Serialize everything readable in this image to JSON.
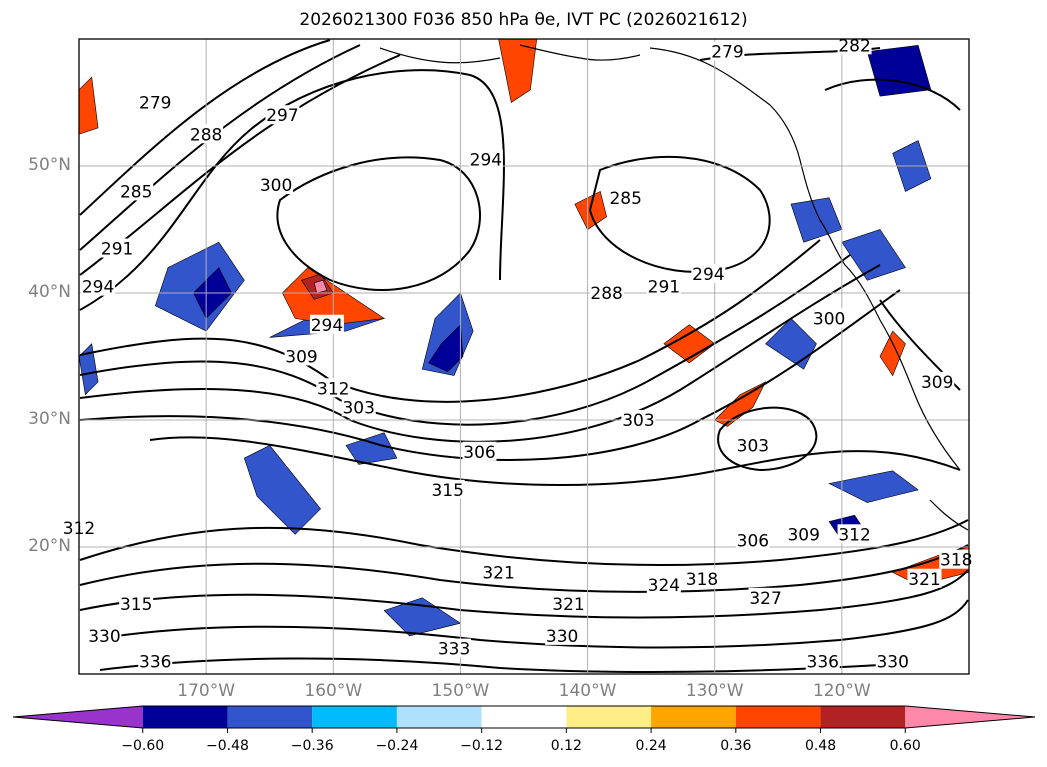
{
  "figure": {
    "title": "2026021300 F036 850 hPa θe, IVT PC (2026021612)"
  },
  "map": {
    "extent": {
      "lon_min": -180,
      "lon_max": -110,
      "lat_min": 10,
      "lat_max": 60
    },
    "lat_ticks": [
      {
        "value": 20,
        "label": "20°N"
      },
      {
        "value": 30,
        "label": "30°N"
      },
      {
        "value": 40,
        "label": "40°N"
      },
      {
        "value": 50,
        "label": "50°N"
      }
    ],
    "lon_ticks": [
      {
        "value": -170,
        "label": "170°W"
      },
      {
        "value": -160,
        "label": "160°W"
      },
      {
        "value": -150,
        "label": "150°W"
      },
      {
        "value": -140,
        "label": "140°W"
      },
      {
        "value": -130,
        "label": "130°W"
      },
      {
        "value": -120,
        "label": "120°W"
      }
    ],
    "grid": true,
    "coastline_color": "#000000",
    "contour_color": "#000000",
    "contour_labels": [
      {
        "text": "279",
        "lon": -174,
        "lat": 55
      },
      {
        "text": "288",
        "lon": -170,
        "lat": 52.5
      },
      {
        "text": "297",
        "lon": -164,
        "lat": 54
      },
      {
        "text": "285",
        "lon": -175.5,
        "lat": 48
      },
      {
        "text": "300",
        "lon": -164.5,
        "lat": 48.5
      },
      {
        "text": "291",
        "lon": -177,
        "lat": 43.5
      },
      {
        "text": "294",
        "lon": -178.5,
        "lat": 40.5
      },
      {
        "text": "294",
        "lon": -160.5,
        "lat": 37.5
      },
      {
        "text": "309",
        "lon": -162.5,
        "lat": 35
      },
      {
        "text": "312",
        "lon": -160,
        "lat": 32.5
      },
      {
        "text": "303",
        "lon": -158,
        "lat": 31
      },
      {
        "text": "306",
        "lon": -148.5,
        "lat": 27.5
      },
      {
        "text": "315",
        "lon": -151,
        "lat": 24.5
      },
      {
        "text": "312",
        "lon": -180,
        "lat": 21.5
      },
      {
        "text": "315",
        "lon": -175.5,
        "lat": 15.5
      },
      {
        "text": "330",
        "lon": -178,
        "lat": 13
      },
      {
        "text": "336",
        "lon": -174,
        "lat": 11
      },
      {
        "text": "321",
        "lon": -147,
        "lat": 18
      },
      {
        "text": "321",
        "lon": -141.5,
        "lat": 15.5
      },
      {
        "text": "324",
        "lon": -134,
        "lat": 17
      },
      {
        "text": "318",
        "lon": -131,
        "lat": 17.5
      },
      {
        "text": "327",
        "lon": -126,
        "lat": 16
      },
      {
        "text": "330",
        "lon": -142,
        "lat": 13
      },
      {
        "text": "333",
        "lon": -150.5,
        "lat": 12
      },
      {
        "text": "306",
        "lon": -127,
        "lat": 20.5
      },
      {
        "text": "309",
        "lon": -123,
        "lat": 21
      },
      {
        "text": "312",
        "lon": -119,
        "lat": 21
      },
      {
        "text": "321",
        "lon": -113.5,
        "lat": 17.5
      },
      {
        "text": "318",
        "lon": -111,
        "lat": 19
      },
      {
        "text": "336",
        "lon": -121.5,
        "lat": 11
      },
      {
        "text": "330",
        "lon": -116,
        "lat": 11
      },
      {
        "text": "303",
        "lon": -136,
        "lat": 30
      },
      {
        "text": "303",
        "lon": -127,
        "lat": 28
      },
      {
        "text": "288",
        "lon": -138.5,
        "lat": 40
      },
      {
        "text": "291",
        "lon": -134,
        "lat": 40.5
      },
      {
        "text": "294",
        "lon": -130.5,
        "lat": 41.5
      },
      {
        "text": "300",
        "lon": -121,
        "lat": 38
      },
      {
        "text": "309",
        "lon": -112.5,
        "lat": 33
      },
      {
        "text": "294",
        "lon": -148,
        "lat": 50.5
      },
      {
        "text": "285",
        "lon": -137,
        "lat": 47.5
      },
      {
        "text": "279",
        "lon": -129,
        "lat": 59
      },
      {
        "text": "282",
        "lon": -119,
        "lat": 59.5
      }
    ]
  },
  "colorbar": {
    "extend": "both",
    "boundaries": [
      -0.72,
      -0.6,
      -0.48,
      -0.36,
      -0.24,
      -0.12,
      0.12,
      0.24,
      0.36,
      0.48,
      0.6,
      0.72
    ],
    "colors": [
      "#9933cc",
      "#000099",
      "#3355cc",
      "#00bbff",
      "#b0e0ff",
      "#ffffff",
      "#ffee88",
      "#ffa500",
      "#ff4500",
      "#b22222",
      "#ff88aa"
    ],
    "ticks": [
      {
        "value": -0.6,
        "label": "−0.60"
      },
      {
        "value": -0.48,
        "label": "−0.48"
      },
      {
        "value": -0.36,
        "label": "−0.36"
      },
      {
        "value": -0.24,
        "label": "−0.24"
      },
      {
        "value": -0.12,
        "label": "−0.12"
      },
      {
        "value": 0.12,
        "label": "0.12"
      },
      {
        "value": 0.24,
        "label": "0.24"
      },
      {
        "value": 0.36,
        "label": "0.36"
      },
      {
        "value": 0.48,
        "label": "0.48"
      },
      {
        "value": 0.6,
        "label": "0.60"
      }
    ]
  },
  "shaded_areas": [
    {
      "color": "#3355cc",
      "points": [
        [
          -173,
          42
        ],
        [
          -169,
          44
        ],
        [
          -167,
          41
        ],
        [
          -170,
          37
        ],
        [
          -174,
          39
        ]
      ]
    },
    {
      "color": "#000099",
      "points": [
        [
          -171,
          40
        ],
        [
          -169,
          42
        ],
        [
          -168,
          40
        ],
        [
          -170,
          38
        ]
      ]
    },
    {
      "color": "#3355cc",
      "points": [
        [
          -165,
          36.5
        ],
        [
          -162,
          38
        ],
        [
          -158,
          39
        ],
        [
          -156,
          38
        ],
        [
          -159,
          37
        ]
      ]
    },
    {
      "color": "#ff4500",
      "points": [
        [
          -164,
          40
        ],
        [
          -162,
          42
        ],
        [
          -159,
          40
        ],
        [
          -156,
          38
        ],
        [
          -160,
          37.5
        ],
        [
          -163,
          38
        ]
      ]
    },
    {
      "color": "#b22222",
      "points": [
        [
          -162.5,
          41
        ],
        [
          -161,
          41.5
        ],
        [
          -160,
          40
        ],
        [
          -161.5,
          39.5
        ]
      ]
    },
    {
      "color": "#ff88aa",
      "points": [
        [
          -161.5,
          40.8
        ],
        [
          -160.8,
          41
        ],
        [
          -160.5,
          40.2
        ],
        [
          -161.3,
          40
        ]
      ]
    },
    {
      "color": "#3355cc",
      "points": [
        [
          -152,
          38
        ],
        [
          -150,
          40
        ],
        [
          -149,
          37
        ],
        [
          -150.5,
          33.5
        ],
        [
          -153,
          34
        ]
      ]
    },
    {
      "color": "#000099",
      "points": [
        [
          -151.5,
          36
        ],
        [
          -150,
          37.5
        ],
        [
          -149.8,
          35
        ],
        [
          -151,
          33.8
        ],
        [
          -152.5,
          34.5
        ]
      ]
    },
    {
      "color": "#ff4500",
      "points": [
        [
          -147,
          60
        ],
        [
          -144,
          60
        ],
        [
          -144.5,
          56
        ],
        [
          -146,
          55
        ]
      ]
    },
    {
      "color": "#ff4500",
      "points": [
        [
          -141,
          47
        ],
        [
          -139,
          48
        ],
        [
          -138.5,
          46
        ],
        [
          -140,
          45
        ]
      ]
    },
    {
      "color": "#3355cc",
      "points": [
        [
          -167,
          27
        ],
        [
          -165,
          28
        ],
        [
          -161,
          23
        ],
        [
          -163,
          21
        ],
        [
          -166,
          24
        ]
      ]
    },
    {
      "color": "#3355cc",
      "points": [
        [
          -159,
          28
        ],
        [
          -156,
          29
        ],
        [
          -155,
          27
        ],
        [
          -158,
          26.5
        ]
      ]
    },
    {
      "color": "#3355cc",
      "points": [
        [
          -156,
          15
        ],
        [
          -153,
          16
        ],
        [
          -150,
          14
        ],
        [
          -154,
          13
        ]
      ]
    },
    {
      "color": "#3355cc",
      "points": [
        [
          -126,
          36
        ],
        [
          -124,
          38
        ],
        [
          -122,
          36
        ],
        [
          -123,
          34
        ]
      ]
    },
    {
      "color": "#ff4500",
      "points": [
        [
          -134,
          36
        ],
        [
          -132,
          37.5
        ],
        [
          -130,
          36
        ],
        [
          -132,
          34.5
        ]
      ]
    },
    {
      "color": "#ff4500",
      "points": [
        [
          -130,
          30
        ],
        [
          -128,
          32
        ],
        [
          -126,
          33
        ],
        [
          -127,
          31
        ],
        [
          -129,
          29.5
        ]
      ]
    },
    {
      "color": "#3355cc",
      "points": [
        [
          -124,
          47
        ],
        [
          -121,
          47.5
        ],
        [
          -120,
          45
        ],
        [
          -123,
          44
        ]
      ]
    },
    {
      "color": "#000099",
      "points": [
        [
          -118,
          59
        ],
        [
          -114,
          59.5
        ],
        [
          -113,
          56
        ],
        [
          -117,
          55.5
        ]
      ]
    },
    {
      "color": "#3355cc",
      "points": [
        [
          -116,
          51
        ],
        [
          -114,
          52
        ],
        [
          -113,
          49
        ],
        [
          -115,
          48
        ]
      ]
    },
    {
      "color": "#3355cc",
      "points": [
        [
          -120,
          44
        ],
        [
          -117,
          45
        ],
        [
          -115,
          42
        ],
        [
          -118,
          41
        ]
      ]
    },
    {
      "color": "#3355cc",
      "points": [
        [
          -121,
          25
        ],
        [
          -116,
          26
        ],
        [
          -114,
          24.5
        ],
        [
          -118,
          23.5
        ]
      ]
    },
    {
      "color": "#000099",
      "points": [
        [
          -121,
          22
        ],
        [
          -119,
          22.5
        ],
        [
          -118,
          21
        ],
        [
          -120,
          20.5
        ]
      ]
    },
    {
      "color": "#ff4500",
      "points": [
        [
          -116,
          18
        ],
        [
          -112,
          19.5
        ],
        [
          -110,
          20
        ],
        [
          -110,
          18
        ],
        [
          -114,
          17
        ]
      ]
    },
    {
      "color": "#ff4500",
      "points": [
        [
          -117,
          35
        ],
        [
          -116,
          37
        ],
        [
          -115,
          36
        ],
        [
          -116,
          33.5
        ]
      ]
    },
    {
      "color": "#3355cc",
      "points": [
        [
          -180,
          35
        ],
        [
          -179,
          36
        ],
        [
          -178.5,
          33
        ],
        [
          -179.5,
          32
        ]
      ]
    },
    {
      "color": "#ff4500",
      "points": [
        [
          -180,
          56
        ],
        [
          -179,
          57
        ],
        [
          -178.5,
          53
        ],
        [
          -180,
          52.5
        ]
      ]
    }
  ]
}
